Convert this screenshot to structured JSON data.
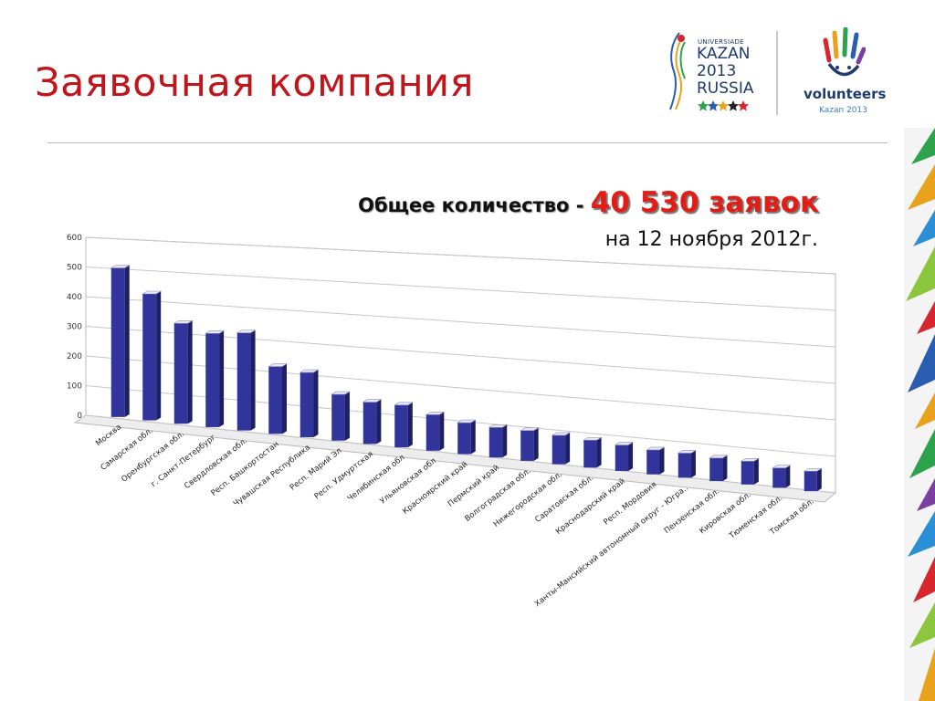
{
  "slide": {
    "title": "Заявочная компания",
    "headline_label": "Общее количество - ",
    "headline_count": "40 530 заявок",
    "headline_date": "на 12 ноября 2012г."
  },
  "logos": {
    "universiade_small": "UNIVERSIADE",
    "universiade_line1": "KAZAN",
    "universiade_line2": "2013",
    "universiade_line3": "RUSSIA",
    "volunteers_word": "volunteers",
    "volunteers_sub": "Kazan 2013"
  },
  "colors": {
    "title": "#c0151a",
    "count": "#e41c16",
    "bar": "#31349a"
  },
  "chart_data": {
    "type": "bar",
    "categories": [
      "Москва",
      "Самарская обл.",
      "Оренбургская обл.",
      "г. Санкт-Петербург",
      "Свердловская обл.",
      "Респ. Башкортостан",
      "Чувашская Республика",
      "Респ. Марий Эл",
      "Респ. Удмуртская",
      "Челябинская обл",
      "Ульяновская обл",
      "Красноярский край",
      "Пермский край",
      "Волгоградская обл.",
      "Нижегородская обл.",
      "Саратовская обл.",
      "Краснодарский край",
      "Респ. Мордовия",
      "Ханты-Мансийский автономный округ - Югра..",
      "Пензенская обл.",
      "Кировская обл.",
      "Тюменская обл.",
      "Томская обл."
    ],
    "values": [
      500,
      420,
      330,
      305,
      315,
      215,
      205,
      145,
      130,
      130,
      110,
      95,
      90,
      90,
      85,
      80,
      75,
      70,
      70,
      65,
      65,
      55,
      55
    ],
    "ylim": [
      0,
      600
    ],
    "yticks": [
      0,
      100,
      200,
      300,
      400,
      500,
      600
    ],
    "grid": true,
    "legend": "none",
    "style": "3d-perspective"
  }
}
